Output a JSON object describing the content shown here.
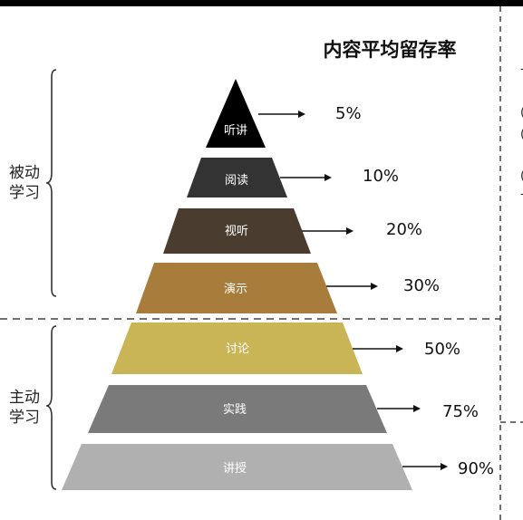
{
  "title": "内容平均留存率",
  "groups": {
    "passive": {
      "line1": "被动",
      "line2": "学习"
    },
    "active": {
      "line1": "主动",
      "line2": "学习"
    }
  },
  "layers": [
    {
      "label": "听讲",
      "percent": "5%",
      "color": "#000000"
    },
    {
      "label": "阅读",
      "percent": "10%",
      "color": "#333333"
    },
    {
      "label": "视听",
      "percent": "20%",
      "color": "#4a3d30"
    },
    {
      "label": "演示",
      "percent": "30%",
      "color": "#a87c3a"
    },
    {
      "label": "讨论",
      "percent": "50%",
      "color": "#c9b456"
    },
    {
      "label": "实践",
      "percent": "75%",
      "color": "#7a7a7a"
    },
    {
      "label": "讲授",
      "percent": "90%",
      "color": "#b0b0b0"
    }
  ],
  "right_edge_chars": [
    "-",
    "(",
    "(",
    "(",
    "-"
  ]
}
